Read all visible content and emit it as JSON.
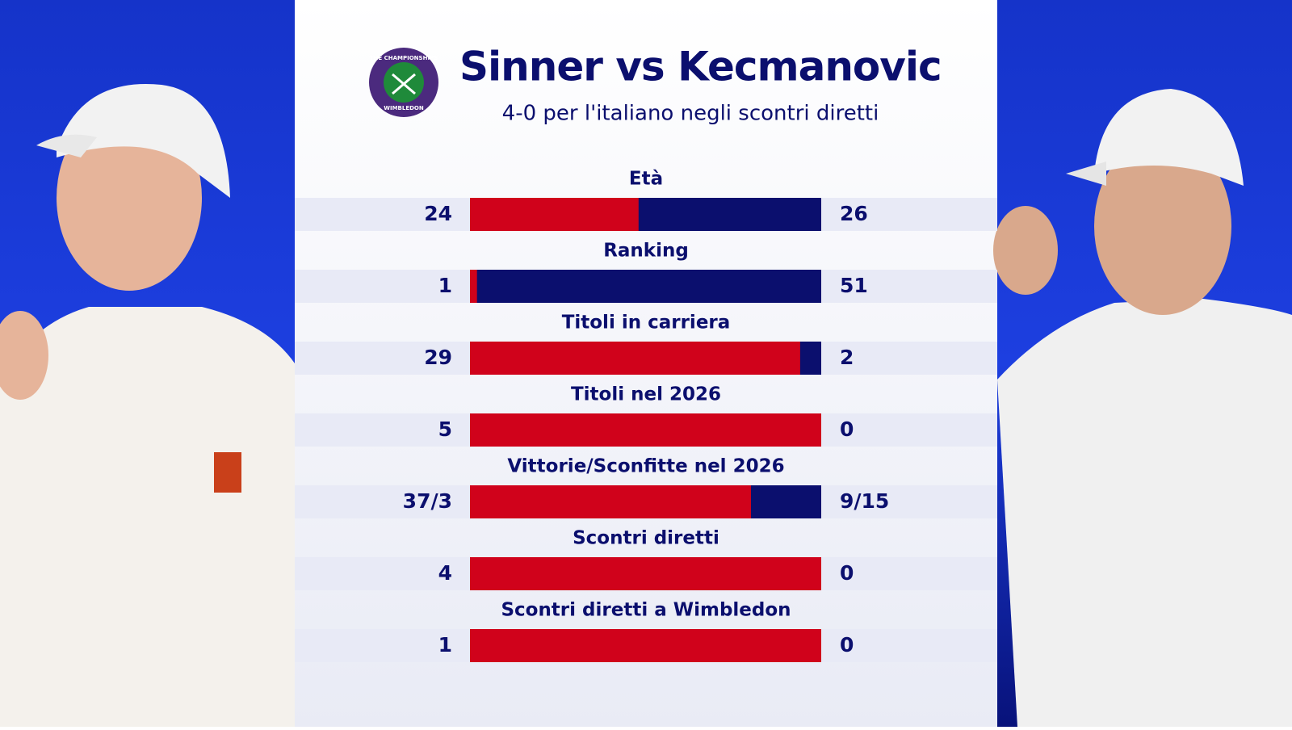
{
  "header": {
    "title": "Sinner vs Kecmanovic",
    "subtitle": "4-0 per l'italiano negli scontri diretti"
  },
  "logo": {
    "top": "THE CHAMPIONSHIPS",
    "bottom": "WIMBLEDON"
  },
  "colors": {
    "left": "#d0021b",
    "right": "#0b0f6e"
  },
  "rows": [
    {
      "label": "Età",
      "left": "24",
      "right": "26",
      "share": 48
    },
    {
      "label": "Ranking",
      "left": "1",
      "right": "51",
      "share": 2
    },
    {
      "label": "Titoli in carriera",
      "left": "29",
      "right": "2",
      "share": 94
    },
    {
      "label": "Titoli nel 2026",
      "left": "5",
      "right": "0",
      "share": 100
    },
    {
      "label": "Vittorie/Sconfitte nel 2026",
      "left": "37/3",
      "right": "9/15",
      "share": 80
    },
    {
      "label": "Scontri diretti",
      "left": "4",
      "right": "0",
      "share": 100
    },
    {
      "label": "Scontri diretti a Wimbledon",
      "left": "1",
      "right": "0",
      "share": 100
    }
  ]
}
